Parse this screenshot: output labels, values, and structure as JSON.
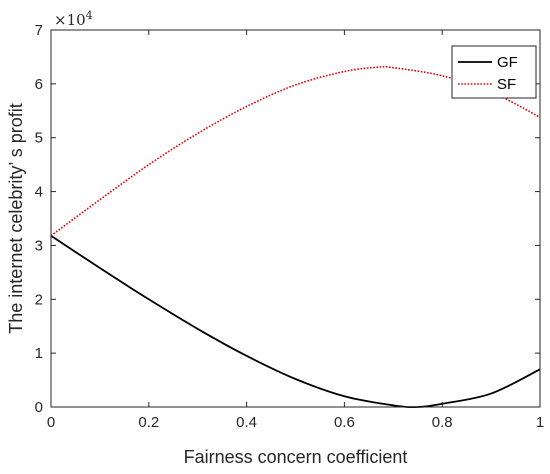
{
  "chart_data": {
    "type": "line",
    "title": "",
    "xlabel": "Fairness concern coefficient",
    "ylabel": "The internet celebrity’  s profit",
    "xlim": [
      0,
      1
    ],
    "ylim": [
      0,
      7
    ],
    "y_multiplier": "×10",
    "y_multiplier_exp": "4",
    "x_ticks": [
      "0",
      "0.2",
      "0.4",
      "0.6",
      "0.8",
      "1"
    ],
    "y_ticks": [
      "0",
      "1",
      "2",
      "3",
      "4",
      "5",
      "6",
      "7"
    ],
    "grid": false,
    "legend_position": "top-right",
    "series": [
      {
        "name": "GF",
        "color": "#000000",
        "style": "solid",
        "x": [
          0,
          0.1,
          0.2,
          0.3,
          0.4,
          0.5,
          0.6,
          0.7,
          0.75,
          0.8,
          0.9,
          1.0
        ],
        "y": [
          3.18,
          2.58,
          2.0,
          1.45,
          0.95,
          0.52,
          0.2,
          0.03,
          0.0,
          0.06,
          0.25,
          0.7
        ]
      },
      {
        "name": "SF",
        "color": "#e8000b",
        "style": "dotted",
        "x": [
          0,
          0.1,
          0.2,
          0.3,
          0.4,
          0.5,
          0.6,
          0.67,
          0.7,
          0.8,
          0.9,
          1.0
        ],
        "y": [
          3.18,
          3.85,
          4.5,
          5.08,
          5.58,
          5.98,
          6.23,
          6.31,
          6.3,
          6.15,
          5.85,
          5.38
        ]
      }
    ]
  }
}
